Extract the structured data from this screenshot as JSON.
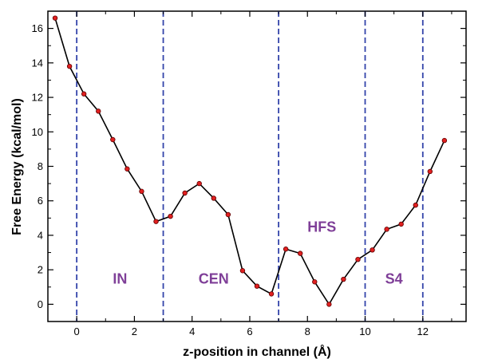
{
  "colors": {
    "line": "#000000",
    "point_fill": "#e02020",
    "point_stroke": "#600000",
    "boundary": "#3344aa",
    "region_label": "#7f3f98"
  },
  "chart_data": {
    "type": "line",
    "title": "",
    "xlabel": "z-position in channel (Å)",
    "ylabel": "Free Energy (kcal/mol)",
    "xlim": [
      -1,
      13.5
    ],
    "ylim": [
      -1,
      17
    ],
    "xticks": [
      0,
      2,
      4,
      6,
      8,
      10,
      12
    ],
    "yticks": [
      0,
      2,
      4,
      6,
      8,
      10,
      12,
      14,
      16
    ],
    "grid": false,
    "series": [
      {
        "x": [
          -0.75,
          -0.25,
          0.25,
          0.75,
          1.25,
          1.75,
          2.25,
          2.75,
          3.25,
          3.75,
          4.25,
          4.75,
          5.25,
          5.75,
          6.25,
          6.75,
          7.25,
          7.75,
          8.25,
          8.75,
          9.25,
          9.75,
          10.25,
          10.75,
          11.25,
          11.75,
          12.25,
          12.75
        ],
        "y": [
          16.6,
          13.8,
          12.2,
          11.2,
          9.55,
          7.85,
          6.55,
          4.8,
          5.1,
          6.45,
          7.0,
          6.15,
          5.2,
          1.95,
          1.05,
          0.6,
          3.2,
          2.95,
          1.3,
          0.0,
          1.45,
          2.6,
          3.15,
          4.35,
          4.65,
          5.75,
          7.7,
          9.5
        ]
      }
    ],
    "boundaries_x": [
      0,
      3,
      7,
      10,
      12
    ],
    "regions": [
      {
        "label": "IN",
        "x": 1.5,
        "y": 1.2
      },
      {
        "label": "CEN",
        "x": 4.75,
        "y": 1.2
      },
      {
        "label": "HFS",
        "x": 8.5,
        "y": 4.2
      },
      {
        "label": "S4",
        "x": 11.0,
        "y": 1.2
      }
    ]
  }
}
